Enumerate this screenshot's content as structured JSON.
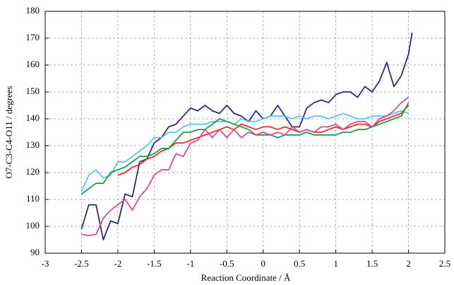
{
  "chart_data": {
    "type": "line",
    "xlabel": "Reaction Coordinate / Å",
    "ylabel": "O7-C3-C4-O11 / degrees",
    "x": [
      -2.5,
      -2.4,
      -2.3,
      -2.2,
      -2.1,
      -2.0,
      -1.9,
      -1.8,
      -1.7,
      -1.6,
      -1.5,
      -1.4,
      -1.3,
      -1.2,
      -1.1,
      -1.0,
      -0.9,
      -0.8,
      -0.7,
      -0.6,
      -0.5,
      -0.4,
      -0.3,
      -0.2,
      -0.1,
      0,
      0.1,
      0.2,
      0.3,
      0.4,
      0.5,
      0.6,
      0.7,
      0.8,
      0.9,
      1.0,
      1.1,
      1.2,
      1.3,
      1.4,
      1.5,
      1.6,
      1.7,
      1.8,
      1.9,
      2.0,
      2.05
    ],
    "series": [
      {
        "color": "#2a2a80",
        "values": [
          99,
          108,
          108,
          95,
          102,
          101,
          112,
          111,
          124,
          125,
          131,
          133,
          137,
          138,
          141,
          144,
          143,
          145,
          143,
          142,
          145,
          142,
          141,
          139,
          143,
          140,
          141,
          145,
          141,
          137,
          137,
          144,
          146,
          147,
          146,
          149,
          150,
          150,
          148,
          152,
          150,
          154,
          161,
          152,
          156,
          164,
          172
        ]
      },
      {
        "color": "#5ec3ee",
        "values": [
          113,
          119,
          121,
          118,
          119,
          124,
          124,
          126,
          128,
          130,
          133,
          133,
          135,
          135,
          137,
          138,
          138,
          138,
          139,
          139,
          139,
          138,
          140,
          139,
          139,
          140,
          141,
          141,
          141,
          140,
          141,
          140,
          141,
          141,
          140,
          141,
          142,
          141,
          140,
          140,
          141,
          141,
          141,
          142,
          143,
          142,
          null
        ]
      },
      {
        "color": "#e8302a",
        "values": [
          null,
          null,
          null,
          null,
          null,
          119,
          120,
          122,
          123,
          125,
          126,
          128,
          129,
          131,
          131,
          132,
          133,
          134,
          135,
          136,
          137,
          136,
          138,
          137,
          136,
          137,
          137,
          136,
          137,
          136,
          135,
          136,
          135,
          135,
          136,
          137,
          136,
          137,
          138,
          138,
          137,
          139,
          140,
          141,
          142,
          145,
          null
        ]
      },
      {
        "color": "#1a9e4a",
        "values": [
          112,
          114,
          116,
          116,
          120,
          121,
          122,
          124,
          126,
          126,
          127,
          129,
          129,
          132,
          135,
          135,
          136,
          136,
          138,
          140,
          139,
          138,
          137,
          136,
          134,
          134,
          134,
          133,
          134,
          134,
          134,
          135,
          134,
          134,
          134,
          134,
          135,
          135,
          136,
          136,
          137,
          138,
          139,
          140,
          141,
          146,
          null
        ]
      },
      {
        "color": "#d94a94",
        "values": [
          97,
          96.5,
          97,
          103,
          106,
          108,
          110,
          106,
          111,
          114,
          119,
          121,
          121,
          127,
          126,
          131,
          132,
          136,
          133,
          136,
          133,
          136,
          133,
          135,
          134,
          135,
          134,
          135,
          134,
          137,
          135,
          136,
          135,
          137,
          137,
          138,
          136,
          138,
          139,
          139,
          137,
          140,
          141,
          143,
          146,
          148,
          null
        ]
      }
    ],
    "xlim": [
      -3,
      2.5
    ],
    "xticks": [
      -3,
      -2.5,
      -2,
      -1.5,
      -1,
      -0.5,
      0,
      0.5,
      1,
      1.5,
      2,
      2.5
    ],
    "ylim": [
      90,
      180
    ],
    "yticks": [
      90,
      100,
      110,
      120,
      130,
      140,
      150,
      160,
      170,
      180
    ],
    "grid": true
  }
}
